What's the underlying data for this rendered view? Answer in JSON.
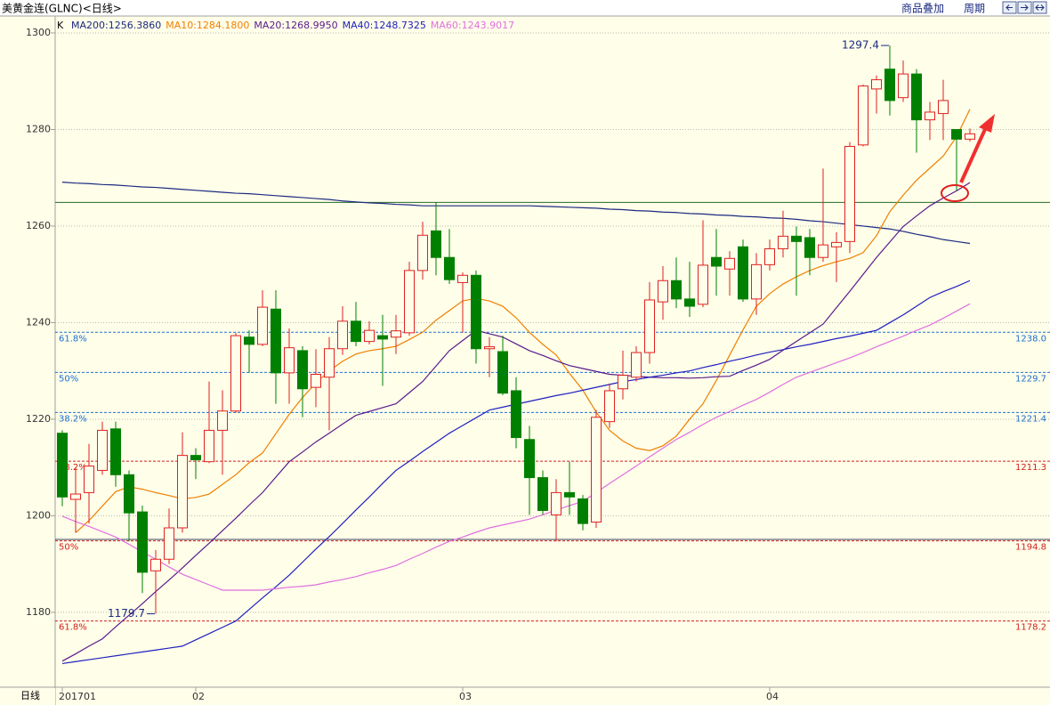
{
  "toolbar": [
    "商品叠加",
    "周期"
  ],
  "chart_data": {
    "type": "candlestick",
    "title": "美黄金连(GLNC)<日线>",
    "x_label": "日线",
    "categories": [
      "201701",
      null,
      null,
      null,
      null,
      null,
      null,
      null,
      null,
      null,
      "02",
      null,
      null,
      null,
      null,
      null,
      null,
      null,
      null,
      null,
      null,
      null,
      null,
      null,
      null,
      null,
      null,
      null,
      null,
      null,
      "03",
      null,
      null,
      null,
      null,
      null,
      null,
      null,
      null,
      null,
      null,
      null,
      null,
      null,
      null,
      null,
      null,
      null,
      null,
      null,
      null,
      null,
      null,
      "04",
      null,
      null,
      null,
      null,
      null,
      null,
      null,
      null,
      null,
      null,
      null,
      null,
      null,
      null,
      null
    ],
    "ylim": [
      1164.5,
      1303.5
    ],
    "yticks": [
      1180,
      1200,
      1220,
      1240,
      1260,
      1280,
      1300
    ],
    "grid": true,
    "candles": {
      "name": "K",
      "up_color": "#e02020",
      "down_color": "#008000",
      "open": [
        1217.1,
        1203.4,
        1204.8,
        1209.4,
        1218,
        1208.5,
        1200.8,
        1188.6,
        1191,
        1197.5,
        1212.5,
        1211.2,
        1217.7,
        1221.7,
        1237,
        1235.5,
        1242.8,
        1229.6,
        1234.2,
        1226.6,
        1228.7,
        1234.6,
        1240.3,
        1236.1,
        1237.3,
        1237,
        1237.9,
        1250.8,
        1259,
        1253.5,
        1248.3,
        1249.8,
        1234.6,
        1234,
        1225.9,
        1215.8,
        1207.9,
        1200.2,
        1204.8,
        1203.5,
        1198.7,
        1219.5,
        1226.3,
        1228.7,
        1233.8,
        1244.3,
        1248.7,
        1244.9,
        1243.8,
        1253.5,
        1251.1,
        1255.7,
        1244.9,
        1252,
        1255.3,
        1257.9,
        1257.6,
        1253.5,
        1255.7,
        1256.8,
        1276.8,
        1288.4,
        1292.5,
        1286.6,
        1291.5,
        1282,
        1283.3,
        1280,
        1278
      ],
      "high": [
        1217.7,
        1210,
        1214.9,
        1219.5,
        1219.5,
        1209.4,
        1202.1,
        1192.9,
        1201.5,
        1217.3,
        1214,
        1227.8,
        1226,
        1237.9,
        1238.4,
        1246.7,
        1246.7,
        1238.8,
        1235.1,
        1234.5,
        1237,
        1243.4,
        1244.3,
        1240.3,
        1241.6,
        1241.6,
        1252.6,
        1260.9,
        1264.9,
        1259.4,
        1250.4,
        1250.8,
        1237,
        1237.3,
        1228.7,
        1218.6,
        1209.4,
        1207.6,
        1211.2,
        1204.3,
        1221.9,
        1227.4,
        1234.2,
        1235.1,
        1248.4,
        1251.7,
        1253.5,
        1252.6,
        1261.2,
        1259.4,
        1254.8,
        1257.2,
        1254.4,
        1257.2,
        1263.2,
        1259.9,
        1259.4,
        1271.9,
        1258.7,
        1277.4,
        1289.3,
        1291.2,
        1297.4,
        1294.3,
        1292.5,
        1285.7,
        1290.3,
        1280,
        1280.2
      ],
      "low": [
        1202,
        1196.5,
        1198.4,
        1208.5,
        1206,
        1194.7,
        1184,
        1179.7,
        1190,
        1196.5,
        1207.6,
        1210.9,
        1208.5,
        1221.3,
        1229.6,
        1235.1,
        1223.2,
        1223.2,
        1220.4,
        1222.5,
        1217.7,
        1233.3,
        1235.1,
        1235.5,
        1226.9,
        1233.5,
        1237.3,
        1248.9,
        1249.8,
        1248,
        1237.9,
        1231.5,
        1228.7,
        1225,
        1214,
        1200.2,
        1200.2,
        1194.7,
        1200.2,
        1197,
        1197.5,
        1218.2,
        1224.1,
        1227.8,
        1231.5,
        1240.6,
        1243,
        1241.2,
        1243.2,
        1245.6,
        1245.6,
        1244.3,
        1241.6,
        1250.8,
        1253.5,
        1245.6,
        1249.8,
        1252.6,
        1248.4,
        1254.4,
        1276.5,
        1283.3,
        1282.9,
        1285.7,
        1275.2,
        1277.8,
        1277.8,
        1267.3,
        1277.5
      ],
      "close": [
        1203.9,
        1204.5,
        1210.3,
        1217.7,
        1208.5,
        1200.6,
        1188.3,
        1191,
        1197.5,
        1212.5,
        1211.6,
        1217.7,
        1221.7,
        1237.3,
        1235.5,
        1243.2,
        1229.6,
        1234.8,
        1226.3,
        1229.3,
        1234.6,
        1240.3,
        1236.1,
        1238.4,
        1236.6,
        1238.3,
        1250.8,
        1258.1,
        1253.5,
        1248.9,
        1249.8,
        1234.6,
        1235.0,
        1225.4,
        1216.2,
        1207.9,
        1201.1,
        1204.8,
        1203.9,
        1198.4,
        1220.4,
        1225.9,
        1229.1,
        1233.8,
        1244.7,
        1248.7,
        1244.9,
        1243.4,
        1251.9,
        1251.7,
        1253.3,
        1244.9,
        1252,
        1255.3,
        1257.9,
        1256.8,
        1253.5,
        1256.1,
        1256.6,
        1276.5,
        1289,
        1290.3,
        1286,
        1291.5,
        1282,
        1283.6,
        1286,
        1278,
        1279.1
      ]
    },
    "series": [
      {
        "name": "MA200:1256.3860",
        "color": "#1c2a80",
        "values": [
          1269.1,
          1268.9,
          1268.8,
          1268.6,
          1268.5,
          1268.3,
          1268.1,
          1268.0,
          1267.8,
          1267.6,
          1267.4,
          1267.2,
          1267.0,
          1266.8,
          1266.7,
          1266.5,
          1266.3,
          1266.1,
          1265.9,
          1265.7,
          1265.5,
          1265.2,
          1265.0,
          1264.8,
          1264.7,
          1264.5,
          1264.4,
          1264.2,
          1264.2,
          1264.2,
          1264.2,
          1264.2,
          1264.2,
          1264.2,
          1264.2,
          1264.2,
          1264.1,
          1264.0,
          1263.9,
          1263.8,
          1263.7,
          1263.5,
          1263.4,
          1263.2,
          1263.1,
          1262.9,
          1262.8,
          1262.6,
          1262.5,
          1262.3,
          1262.2,
          1262.0,
          1261.9,
          1261.7,
          1261.6,
          1261.4,
          1261.1,
          1260.9,
          1260.6,
          1260.3,
          1260.0,
          1259.7,
          1259.4,
          1258.9,
          1258.3,
          1257.8,
          1257.2,
          1256.8,
          1256.4
        ]
      },
      {
        "name": "MA10:1284.1800",
        "color": "#f08000",
        "values": [
          null,
          1196.5,
          1199,
          1202,
          1205,
          1206,
          1205.5,
          1204.8,
          1204.2,
          1203.5,
          1203.8,
          1204.5,
          1206.5,
          1208.5,
          1211,
          1213,
          1217,
          1221,
          1224.5,
          1227.5,
          1230,
          1232,
          1233.5,
          1234.2,
          1234.6,
          1235.1,
          1236.5,
          1238,
          1240.5,
          1242.5,
          1244.5,
          1245,
          1244.5,
          1243.4,
          1241,
          1238,
          1235.5,
          1233.3,
          1229.5,
          1226,
          1221.5,
          1217.7,
          1215.5,
          1214,
          1213.5,
          1214.5,
          1216.5,
          1220,
          1223.2,
          1228,
          1233.3,
          1238.5,
          1243.4,
          1246,
          1248,
          1249.5,
          1250.8,
          1251.8,
          1252.6,
          1253.3,
          1254.5,
          1258,
          1263,
          1266.4,
          1269.5,
          1272,
          1274.5,
          1278.5,
          1284.2
        ]
      },
      {
        "name": "MA20:1268.9950",
        "color": "#5a1a8c",
        "values": [
          1169.9,
          1171.4,
          1173.0,
          1174.5,
          1177.0,
          1179.4,
          1181.8,
          1184.3,
          1186.7,
          1189.2,
          1191.8,
          1194.3,
          1196.9,
          1199.5,
          1202.2,
          1204.8,
          1208.0,
          1211.2,
          1213.2,
          1215.3,
          1217.1,
          1219.0,
          1220.8,
          1221.6,
          1222.4,
          1223.2,
          1225.5,
          1227.8,
          1231.0,
          1234.2,
          1236.3,
          1238.4,
          1237.7,
          1237.0,
          1235.6,
          1234.2,
          1233.2,
          1232.1,
          1231.1,
          1230.5,
          1229.9,
          1229.3,
          1229.1,
          1228.9,
          1228.7,
          1228.6,
          1228.6,
          1228.5,
          1228.6,
          1228.8,
          1228.9,
          1230.1,
          1231.2,
          1232.4,
          1234.3,
          1236.1,
          1237.9,
          1239.7,
          1243.1,
          1246.5,
          1250.0,
          1253.5,
          1256.7,
          1259.9,
          1262.1,
          1264.2,
          1265.8,
          1267.3,
          1269.0
        ]
      },
      {
        "name": "MA40:1248.7325",
        "color": "#2020c0",
        "values": [
          1169.4,
          1169.8,
          1170.2,
          1170.6,
          1171.0,
          1171.4,
          1171.8,
          1172.2,
          1172.6,
          1173.0,
          1174.3,
          1175.6,
          1176.9,
          1178.2,
          1180.6,
          1183.0,
          1185.3,
          1187.7,
          1190.4,
          1193.1,
          1195.7,
          1198.4,
          1201.2,
          1203.9,
          1206.7,
          1209.4,
          1211.3,
          1213.3,
          1215.2,
          1217.1,
          1218.7,
          1220.3,
          1221.9,
          1222.5,
          1223.1,
          1223.7,
          1224.3,
          1224.9,
          1225.4,
          1226.0,
          1226.6,
          1227.2,
          1227.8,
          1228.2,
          1228.7,
          1229.1,
          1229.6,
          1230.0,
          1230.7,
          1231.3,
          1232.0,
          1232.6,
          1233.3,
          1233.9,
          1234.4,
          1235.0,
          1235.5,
          1236.1,
          1236.7,
          1237.2,
          1237.8,
          1238.4,
          1240.0,
          1241.6,
          1243.4,
          1245.2,
          1246.4,
          1247.5,
          1248.7
        ]
      },
      {
        "name": "MA60:1243.9017",
        "color": "#e070e0",
        "values": [
          1199.9,
          1198.8,
          1197.8,
          1196.7,
          1195.6,
          1194.1,
          1192.5,
          1191.0,
          1189.4,
          1187.9,
          1186.8,
          1185.7,
          1184.6,
          1184.6,
          1184.6,
          1184.6,
          1184.9,
          1185.2,
          1185.4,
          1185.7,
          1186.3,
          1186.8,
          1187.4,
          1188.2,
          1188.9,
          1189.7,
          1191.0,
          1192.2,
          1193.5,
          1194.7,
          1195.6,
          1196.6,
          1197.5,
          1198.1,
          1198.7,
          1199.3,
          1200.2,
          1201.2,
          1202.1,
          1203.0,
          1204.8,
          1206.7,
          1208.5,
          1210.3,
          1212.2,
          1214.0,
          1215.8,
          1217.3,
          1218.9,
          1220.4,
          1221.6,
          1222.9,
          1224.1,
          1225.6,
          1227.2,
          1228.7,
          1229.7,
          1230.7,
          1231.7,
          1232.7,
          1233.8,
          1235.0,
          1236.1,
          1237.2,
          1238.4,
          1239.5,
          1240.9,
          1242.4,
          1243.9
        ]
      }
    ],
    "levels": [
      {
        "value": 1238,
        "value_label": "1238.0",
        "ratio": "61.8%",
        "color": "#2070d0"
      },
      {
        "value": 1229.7,
        "ratio": "50%",
        "color": "#2070d0"
      },
      {
        "value": 1221.4,
        "ratio": "38.2%",
        "color": "#2070d0"
      },
      {
        "value": 1211.3,
        "ratio": "38.2%",
        "color": "#d02020"
      },
      {
        "value": 1194.8,
        "ratio": "50%",
        "color": "#d02020"
      },
      {
        "value": 1178.2,
        "ratio": "61.8%",
        "color": "#d02020"
      }
    ],
    "lines": [
      {
        "value": 1264.9,
        "color": "#2a6a2a"
      },
      {
        "value": 1195.1,
        "color": "#404060"
      }
    ],
    "annotations": {
      "high": 1297.4,
      "low": 1179.7
    }
  }
}
